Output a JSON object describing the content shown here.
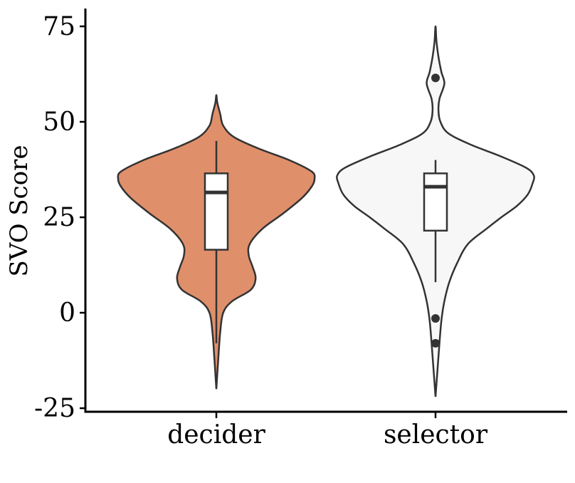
{
  "chart_data": {
    "type": "violin",
    "title": "",
    "xlabel": "",
    "ylabel": "SVO Score",
    "ylim": [
      -26,
      80
    ],
    "yticks": [
      -25,
      0,
      25,
      50,
      75
    ],
    "ytick_labels": [
      "-25",
      "0",
      "25",
      "50",
      "75"
    ],
    "categories": [
      "decider",
      "selector"
    ],
    "groups": [
      {
        "name": "decider",
        "fill": "#e08f6b",
        "violin": {
          "y_min": -20,
          "y_max": 57,
          "profile": [
            [
              -20,
              0.0
            ],
            [
              -12,
              0.02
            ],
            [
              -5,
              0.04
            ],
            [
              0,
              0.07
            ],
            [
              3,
              0.16
            ],
            [
              6,
              0.35
            ],
            [
              9,
              0.4
            ],
            [
              12,
              0.37
            ],
            [
              15,
              0.33
            ],
            [
              18,
              0.34
            ],
            [
              22,
              0.47
            ],
            [
              26,
              0.68
            ],
            [
              30,
              0.87
            ],
            [
              33,
              0.97
            ],
            [
              35,
              1.0
            ],
            [
              37,
              0.97
            ],
            [
              40,
              0.74
            ],
            [
              43,
              0.43
            ],
            [
              46,
              0.18
            ],
            [
              49,
              0.07
            ],
            [
              52,
              0.04
            ],
            [
              55,
              0.01
            ],
            [
              57,
              0.0
            ]
          ]
        },
        "box": {
          "whisker_low": -8,
          "q1": 16.5,
          "median": 31.5,
          "q3": 36.5,
          "whisker_high": 45
        },
        "outliers": []
      },
      {
        "name": "selector",
        "fill": "#f7f7f7",
        "violin": {
          "y_min": -22,
          "y_max": 75,
          "profile": [
            [
              -22,
              0.0
            ],
            [
              -15,
              0.02
            ],
            [
              -8,
              0.04
            ],
            [
              -2,
              0.06
            ],
            [
              3,
              0.09
            ],
            [
              8,
              0.14
            ],
            [
              13,
              0.22
            ],
            [
              18,
              0.33
            ],
            [
              22,
              0.52
            ],
            [
              25,
              0.67
            ],
            [
              28,
              0.83
            ],
            [
              31,
              0.94
            ],
            [
              34,
              0.99
            ],
            [
              36,
              1.0
            ],
            [
              38,
              0.92
            ],
            [
              41,
              0.66
            ],
            [
              44,
              0.36
            ],
            [
              47,
              0.13
            ],
            [
              50,
              0.05
            ],
            [
              53,
              0.03
            ],
            [
              56,
              0.04
            ],
            [
              60,
              0.09
            ],
            [
              63,
              0.06
            ],
            [
              67,
              0.03
            ],
            [
              71,
              0.01
            ],
            [
              75,
              0.0
            ]
          ]
        },
        "box": {
          "whisker_low": 8,
          "q1": 21.5,
          "median": 33,
          "q3": 36.5,
          "whisker_high": 40
        },
        "outliers": [
          61.5,
          -1.5,
          -8
        ]
      }
    ],
    "grid": false,
    "legend": "none",
    "colors": {
      "decider": "#e08f6b",
      "selector": "#f7f7f7",
      "outline": "#333333"
    }
  }
}
